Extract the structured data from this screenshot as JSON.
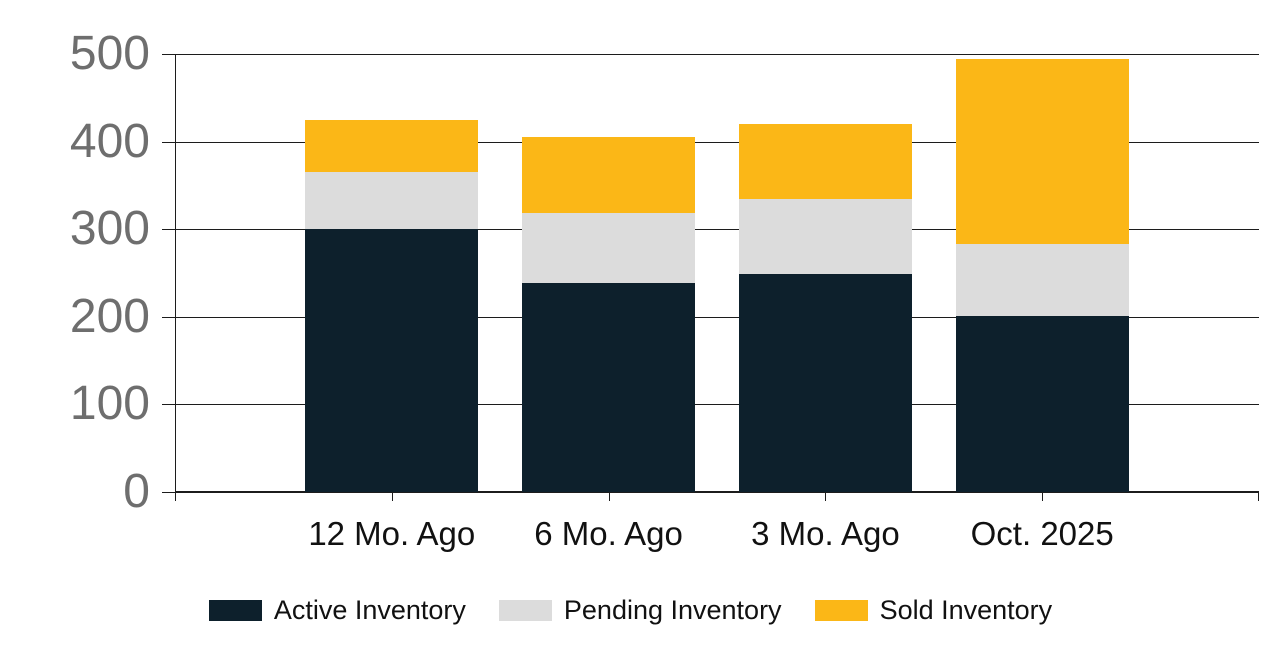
{
  "chart_data": {
    "type": "bar",
    "stacked": true,
    "categories": [
      "12 Mo. Ago",
      "6 Mo. Ago",
      "3 Mo. Ago",
      "Oct. 2025"
    ],
    "series": [
      {
        "name": "Active Inventory",
        "color": "#0d202c",
        "values": [
          300,
          239,
          249,
          201
        ]
      },
      {
        "name": "Pending Inventory",
        "color": "#dcdcdc",
        "values": [
          65,
          80,
          85,
          82
        ]
      },
      {
        "name": "Sold Inventory",
        "color": "#fbb717",
        "values": [
          60,
          86,
          86,
          211
        ]
      }
    ],
    "totals": [
      425,
      405,
      420,
      494
    ],
    "xlabel": "",
    "ylabel": "",
    "ylim": [
      0,
      500
    ],
    "yticks": [
      0,
      100,
      200,
      300,
      400,
      500
    ],
    "grid": true,
    "legend_position": "bottom",
    "colors": {
      "axis": "#1c1c1c",
      "ytick_labels": "#6e6e6e",
      "xtick_labels": "#111111",
      "legend_text": "#111111",
      "background": "#ffffff"
    }
  }
}
